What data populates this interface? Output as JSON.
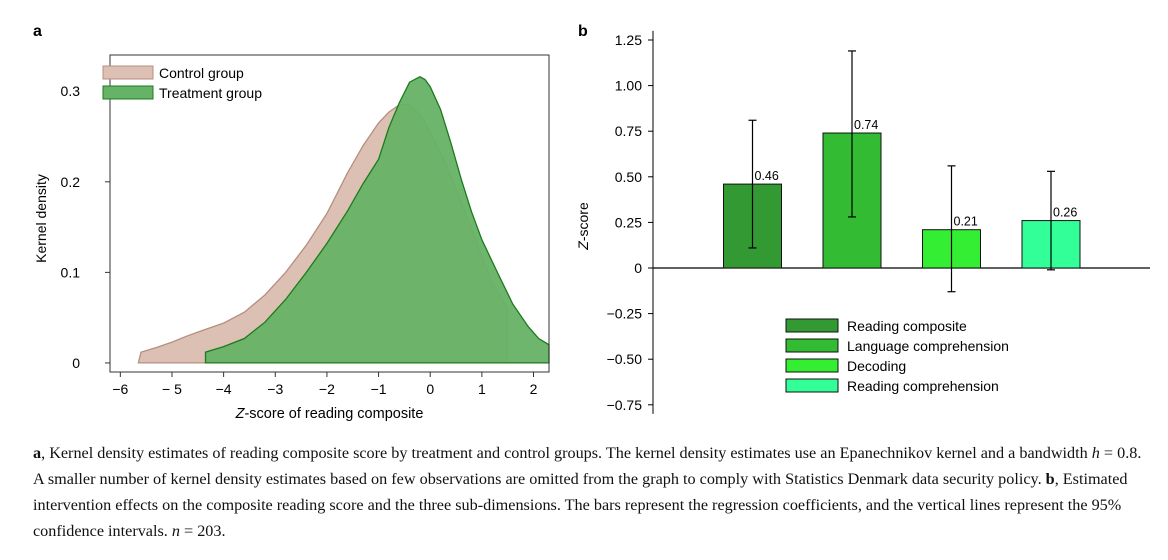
{
  "panels": {
    "a_label": "a",
    "b_label": "b"
  },
  "chart_data": [
    {
      "type": "area",
      "panel": "a",
      "xlabel_prefix": "Z",
      "xlabel_rest": "-score of reading composite",
      "ylabel": "Kernel density",
      "xlim": [
        -6.2,
        2.3
      ],
      "ylim": [
        -0.01,
        0.34
      ],
      "xticks": [
        -6,
        -5,
        -4,
        -3,
        -2,
        -1,
        0,
        1,
        2
      ],
      "xtick_labels": [
        "−6",
        "− 5",
        "−4",
        "−3",
        "−2",
        "−1",
        "0",
        "1",
        "2"
      ],
      "yticks": [
        0,
        0.1,
        0.2,
        0.3
      ],
      "ytick_labels": [
        "0",
        "0.1",
        "0.2",
        "0.3"
      ],
      "legend_position": "top-left",
      "series": [
        {
          "name": "Control group",
          "color": "#dcc0b3",
          "stroke": "#b58f80",
          "x": [
            -5.65,
            -5.6,
            -5.3,
            -5.0,
            -4.7,
            -4.4,
            -4.0,
            -3.6,
            -3.2,
            -2.8,
            -2.4,
            -2.0,
            -1.6,
            -1.3,
            -1.0,
            -0.8,
            -0.6,
            -0.4,
            -0.2,
            0.0,
            0.3,
            0.6,
            0.9,
            1.2,
            1.5,
            1.5
          ],
          "y": [
            0.0,
            0.012,
            0.017,
            0.023,
            0.03,
            0.036,
            0.044,
            0.056,
            0.075,
            0.1,
            0.13,
            0.165,
            0.21,
            0.24,
            0.265,
            0.277,
            0.285,
            0.285,
            0.275,
            0.255,
            0.22,
            0.178,
            0.133,
            0.088,
            0.06,
            0.0
          ]
        },
        {
          "name": "Treatment group",
          "color": "#66b266",
          "stroke": "#1c7a1c",
          "x": [
            -4.35,
            -4.35,
            -4.0,
            -3.6,
            -3.2,
            -2.8,
            -2.4,
            -2.0,
            -1.6,
            -1.3,
            -1.0,
            -0.8,
            -0.6,
            -0.4,
            -0.2,
            -0.1,
            0.0,
            0.2,
            0.4,
            0.6,
            0.8,
            1.0,
            1.3,
            1.6,
            1.9,
            2.1,
            2.3,
            2.3
          ],
          "y": [
            0.0,
            0.012,
            0.018,
            0.027,
            0.045,
            0.07,
            0.1,
            0.132,
            0.168,
            0.198,
            0.225,
            0.26,
            0.287,
            0.31,
            0.316,
            0.313,
            0.305,
            0.28,
            0.243,
            0.203,
            0.167,
            0.136,
            0.1,
            0.065,
            0.04,
            0.027,
            0.02,
            0.0
          ]
        }
      ]
    },
    {
      "type": "bar",
      "panel": "b",
      "ylabel_prefix": "Z",
      "ylabel_rest": "-score",
      "ylim": [
        -0.8,
        1.3
      ],
      "yticks": [
        -0.75,
        -0.5,
        -0.25,
        0,
        0.25,
        0.5,
        0.75,
        1.0,
        1.25
      ],
      "ytick_labels": [
        "−0.75",
        "−0.50",
        "−0.25",
        "0",
        "0.25",
        "0.50",
        "0.75",
        "1.00",
        "1.25"
      ],
      "legend_position": "lower-middle",
      "categories": [
        "Reading composite",
        "Language comprehension",
        "Decoding",
        "Reading comprehension"
      ],
      "values": [
        0.46,
        0.74,
        0.21,
        0.26
      ],
      "value_labels": [
        "0.46",
        "0.74",
        "0.21",
        "0.26"
      ],
      "ci_low": [
        0.11,
        0.28,
        -0.13,
        -0.01
      ],
      "ci_high": [
        0.81,
        1.19,
        0.56,
        0.53
      ],
      "colors": [
        "#339933",
        "#33bb33",
        "#33ee33",
        "#33ff99"
      ]
    }
  ],
  "caption": {
    "a_bold": "a",
    "a_text_1": ", Kernel density estimates of reading composite score by treatment and control groups. The kernel density estimates use an Epanechnikov kernel and a bandwidth ",
    "h_symbol": "h",
    "a_text_2": " = 0.8. A smaller number of kernel density estimates based on few observations are omitted from the graph to comply with Statistics Denmark data security policy. ",
    "b_bold": "b",
    "b_text_1": ", Estimated intervention effects on the composite reading score and the three sub-dimensions. The bars represent the regression coefficients, and the vertical lines represent the 95% confidence intervals. ",
    "n_symbol": "n",
    "b_text_2": " = 203."
  }
}
